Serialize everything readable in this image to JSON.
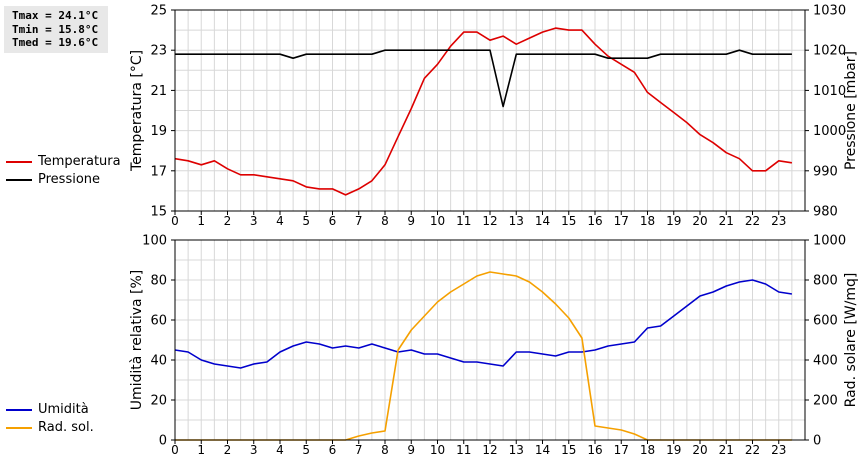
{
  "stats": {
    "tmax": "Tmax = 24.1°C",
    "tmin": "Tmin = 15.8°C",
    "tmed": "Tmed = 19.6°C"
  },
  "legend_top": [
    {
      "label": "Temperatura",
      "color": "#dd0000"
    },
    {
      "label": "Pressione",
      "color": "#000000"
    }
  ],
  "legend_bottom": [
    {
      "label": "Umidità",
      "color": "#0000cc"
    },
    {
      "label": "Rad. sol.",
      "color": "#f5a000"
    }
  ],
  "chart_data": [
    {
      "type": "line",
      "xlabel": "",
      "xlim": [
        0,
        24
      ],
      "x_ticks": [
        0,
        1,
        2,
        3,
        4,
        5,
        6,
        7,
        8,
        9,
        10,
        11,
        12,
        13,
        14,
        15,
        16,
        17,
        18,
        19,
        20,
        21,
        22,
        23
      ],
      "ylabel_left": "Temperatura [°C]",
      "ylim_left": [
        15,
        25
      ],
      "yticks_left": [
        15,
        17,
        19,
        21,
        23,
        25
      ],
      "ylabel_right": "Pressione [mbar]",
      "ylim_right": [
        980,
        1030
      ],
      "yticks_right": [
        980,
        990,
        1000,
        1010,
        1020,
        1030
      ],
      "grid": true,
      "series": [
        {
          "name": "Temperatura",
          "axis": "left",
          "color": "#dd0000",
          "x": [
            0,
            0.5,
            1,
            1.5,
            2,
            2.5,
            3,
            3.5,
            4,
            4.5,
            5,
            5.5,
            6,
            6.5,
            7,
            7.5,
            8,
            8.5,
            9,
            9.5,
            10,
            10.5,
            11,
            11.5,
            12,
            12.5,
            13,
            13.5,
            14,
            14.5,
            15,
            15.5,
            16,
            16.5,
            17,
            17.5,
            18,
            18.5,
            19,
            19.5,
            20,
            20.5,
            21,
            21.5,
            22,
            22.5,
            23,
            23.5
          ],
          "y": [
            17.6,
            17.5,
            17.3,
            17.5,
            17.1,
            16.8,
            16.8,
            16.7,
            16.6,
            16.5,
            16.2,
            16.1,
            16.1,
            15.8,
            16.1,
            16.5,
            17.3,
            18.7,
            20.1,
            21.6,
            22.3,
            23.2,
            23.9,
            23.9,
            23.5,
            23.7,
            23.3,
            23.6,
            23.9,
            24.1,
            24.0,
            24.0,
            23.3,
            22.7,
            22.3,
            21.9,
            20.9,
            20.4,
            19.9,
            19.4,
            18.8,
            18.4,
            17.9,
            17.6,
            17.0,
            17.0,
            17.5,
            17.4
          ]
        },
        {
          "name": "Pressione",
          "axis": "right",
          "color": "#000000",
          "x": [
            0,
            0.5,
            1,
            1.5,
            2,
            2.5,
            3,
            3.5,
            4,
            4.5,
            5,
            5.5,
            6,
            6.5,
            7,
            7.5,
            8,
            8.5,
            9,
            9.5,
            10,
            10.5,
            11,
            11.5,
            12,
            12.5,
            13,
            13.5,
            14,
            14.5,
            15,
            15.5,
            16,
            16.5,
            17,
            17.5,
            18,
            18.5,
            19,
            19.5,
            20,
            20.5,
            21,
            21.5,
            22,
            22.5,
            23,
            23.5
          ],
          "y": [
            1019,
            1019,
            1019,
            1019,
            1019,
            1019,
            1019,
            1019,
            1019,
            1018,
            1019,
            1019,
            1019,
            1019,
            1019,
            1019,
            1020,
            1020,
            1020,
            1020,
            1020,
            1020,
            1020,
            1020,
            1020,
            1006,
            1019,
            1019,
            1019,
            1019,
            1019,
            1019,
            1019,
            1018,
            1018,
            1018,
            1018,
            1019,
            1019,
            1019,
            1019,
            1019,
            1019,
            1020,
            1019,
            1019,
            1019,
            1019
          ]
        }
      ]
    },
    {
      "type": "line",
      "xlabel": "",
      "xlim": [
        0,
        24
      ],
      "x_ticks": [
        0,
        1,
        2,
        3,
        4,
        5,
        6,
        7,
        8,
        9,
        10,
        11,
        12,
        13,
        14,
        15,
        16,
        17,
        18,
        19,
        20,
        21,
        22,
        23
      ],
      "ylabel_left": "Umidità relativa [%]",
      "ylim_left": [
        0,
        100
      ],
      "yticks_left": [
        0,
        20,
        40,
        60,
        80,
        100
      ],
      "ylabel_right": "Rad. solare [W/mq]",
      "ylim_right": [
        0,
        1000
      ],
      "yticks_right": [
        0,
        200,
        400,
        600,
        800,
        1000
      ],
      "grid": true,
      "series": [
        {
          "name": "Umidità",
          "axis": "left",
          "color": "#0000cc",
          "x": [
            0,
            0.5,
            1,
            1.5,
            2,
            2.5,
            3,
            3.5,
            4,
            4.5,
            5,
            5.5,
            6,
            6.5,
            7,
            7.5,
            8,
            8.5,
            9,
            9.5,
            10,
            10.5,
            11,
            11.5,
            12,
            12.5,
            13,
            13.5,
            14,
            14.5,
            15,
            15.5,
            16,
            16.5,
            17,
            17.5,
            18,
            18.5,
            19,
            19.5,
            20,
            20.5,
            21,
            21.5,
            22,
            22.5,
            23,
            23.5
          ],
          "y": [
            45,
            44,
            40,
            38,
            37,
            36,
            38,
            39,
            44,
            47,
            49,
            48,
            46,
            47,
            46,
            48,
            46,
            44,
            45,
            43,
            43,
            41,
            39,
            39,
            38,
            37,
            44,
            44,
            43,
            42,
            44,
            44,
            45,
            47,
            48,
            49,
            56,
            57,
            62,
            67,
            72,
            74,
            77,
            79,
            80,
            78,
            74,
            73
          ]
        },
        {
          "name": "Rad. sol.",
          "axis": "right",
          "color": "#f5a000",
          "x": [
            0,
            0.5,
            1,
            1.5,
            2,
            2.5,
            3,
            3.5,
            4,
            4.5,
            5,
            5.5,
            6,
            6.5,
            7,
            7.5,
            8,
            8.5,
            9,
            9.5,
            10,
            10.5,
            11,
            11.5,
            12,
            12.5,
            13,
            13.5,
            14,
            14.5,
            15,
            15.5,
            16,
            16.5,
            17,
            17.5,
            18,
            18.5,
            19,
            19.5,
            20,
            20.5,
            21,
            21.5,
            22,
            22.5,
            23,
            23.5
          ],
          "y": [
            0,
            0,
            0,
            0,
            0,
            0,
            0,
            0,
            0,
            0,
            0,
            0,
            0,
            0,
            20,
            35,
            45,
            450,
            550,
            620,
            690,
            740,
            780,
            820,
            840,
            830,
            820,
            790,
            740,
            680,
            610,
            510,
            70,
            60,
            50,
            30,
            0,
            0,
            0,
            0,
            0,
            0,
            0,
            0,
            0,
            0,
            0,
            0
          ]
        }
      ]
    }
  ]
}
